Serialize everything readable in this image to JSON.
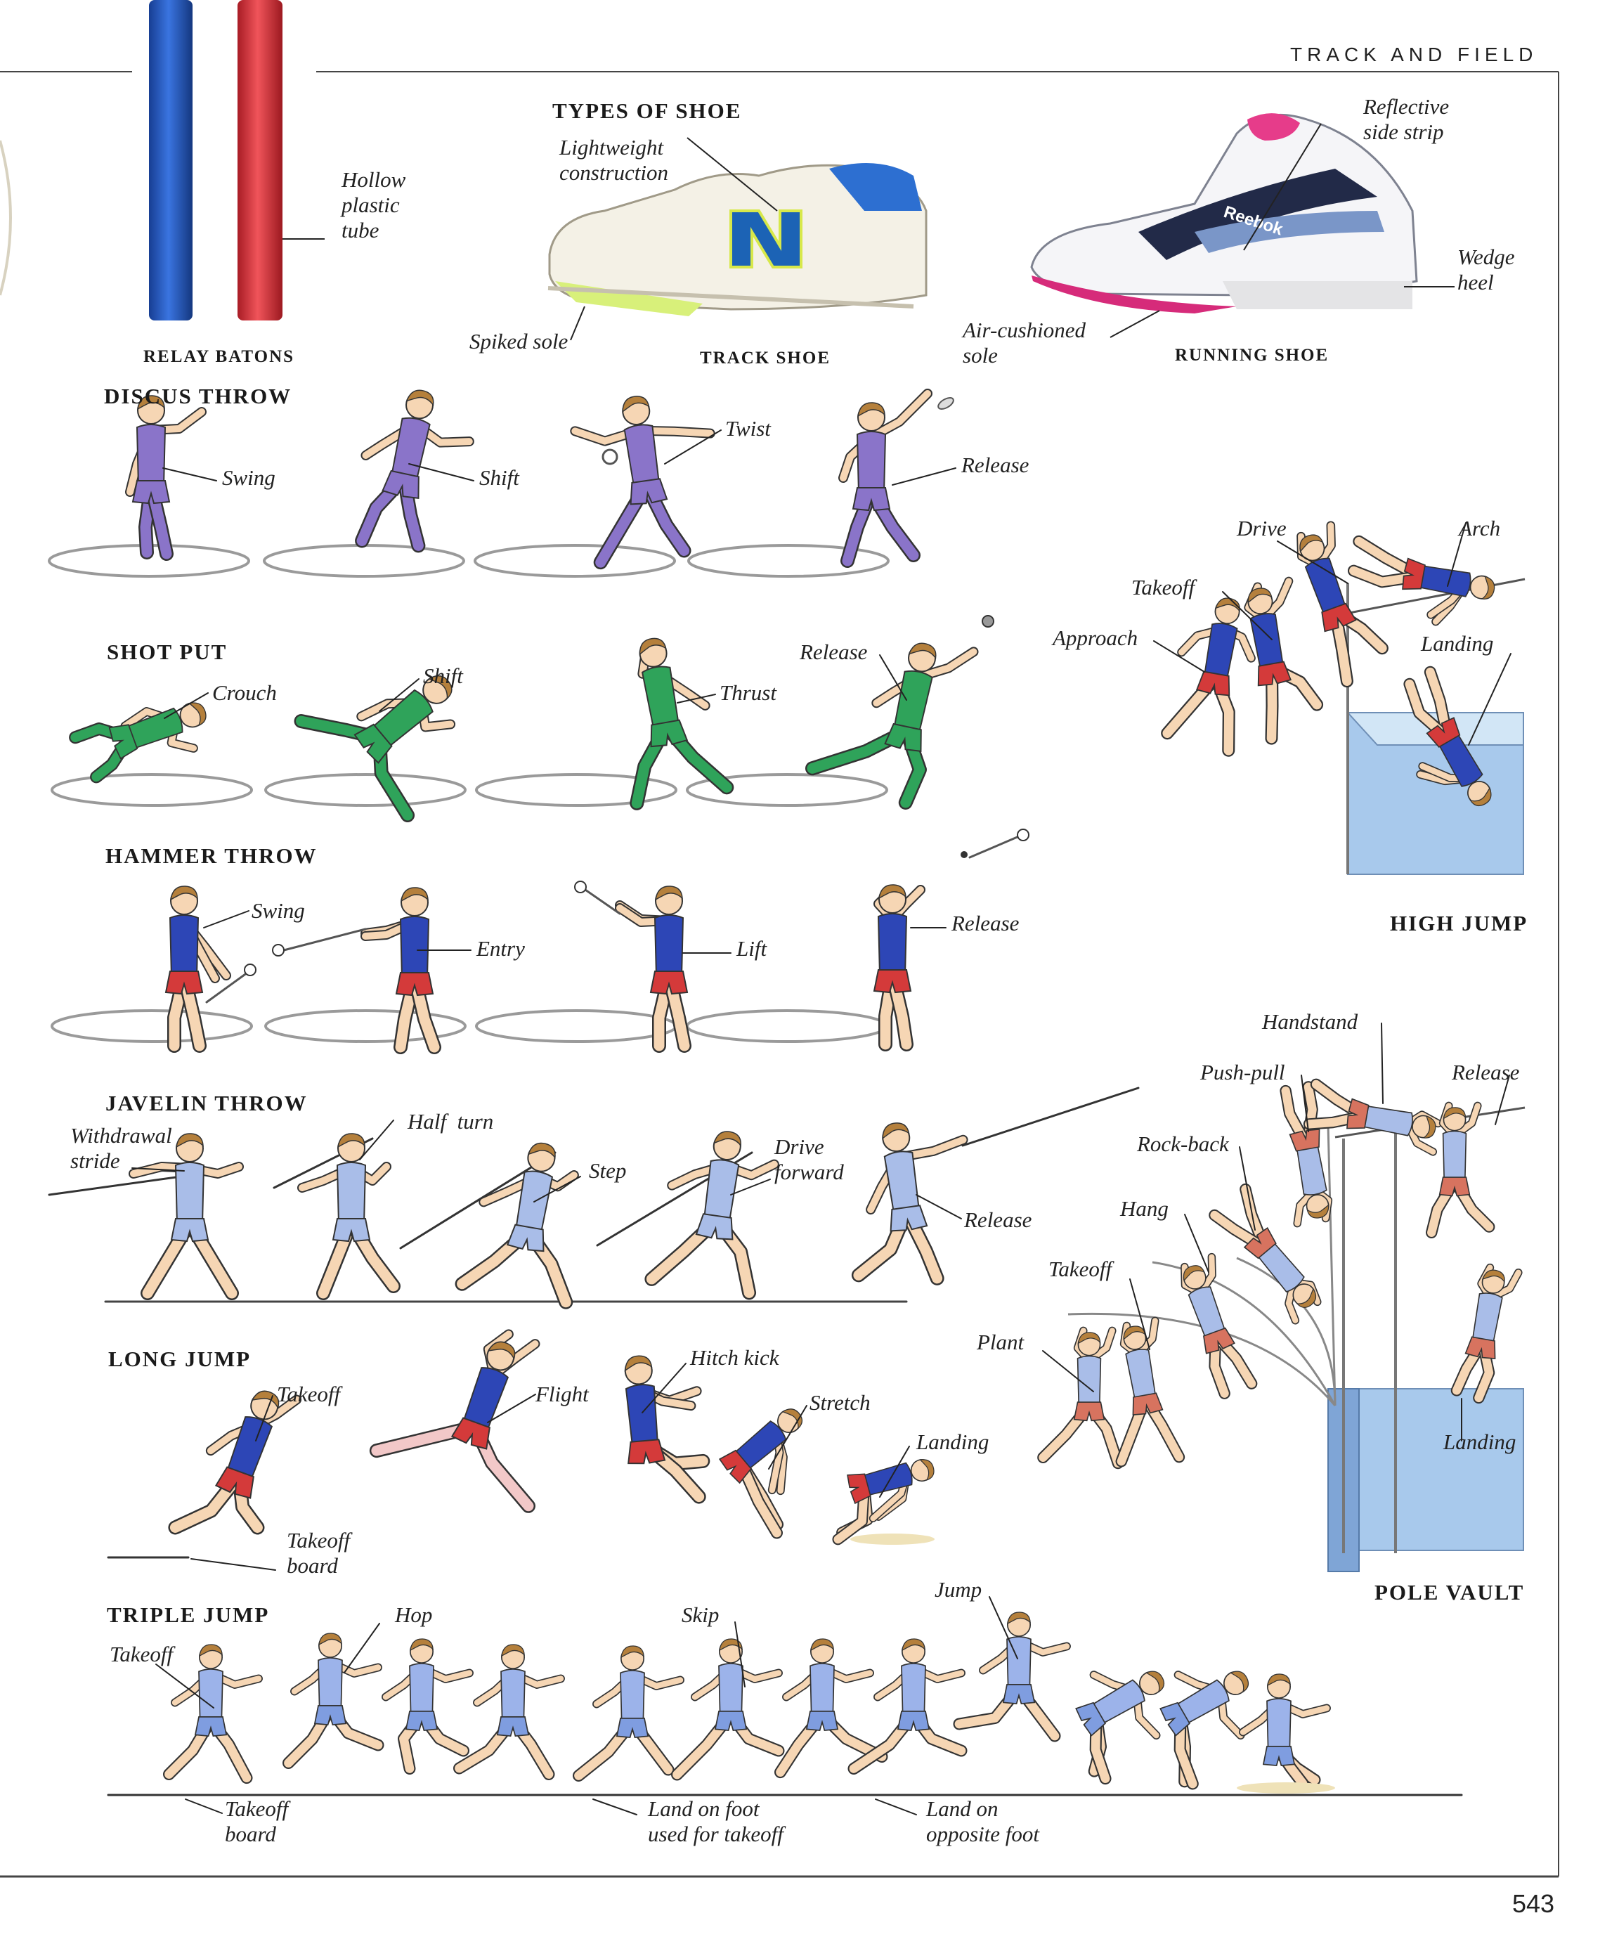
{
  "page": {
    "running_head": "TRACK AND FIELD",
    "page_number": "543"
  },
  "relay": {
    "caption": "RELAY BATONS",
    "label_tube": "Hollow\nplastic\ntube",
    "colors": {
      "blue": "#1f4fb3",
      "red": "#d22a33"
    }
  },
  "shoes": {
    "heading": "TYPES OF SHOE",
    "track_caption": "TRACK SHOE",
    "running_caption": "RUNNING SHOE",
    "labels": {
      "lightweight": "Lightweight\nconstruction",
      "spiked_sole": "Spiked sole",
      "reflective": "Reflective\nside strip",
      "wedge_heel": "Wedge\nheel",
      "air_sole": "Air-cushioned\nsole"
    }
  },
  "discus": {
    "heading": "DISCUS THROW",
    "steps": [
      "Swing",
      "Shift",
      "Twist",
      "Release"
    ],
    "color": "#8a74c9"
  },
  "shot_put": {
    "heading": "SHOT PUT",
    "steps": [
      "Crouch",
      "Shift",
      "Thrust",
      "Release"
    ],
    "color": "#2fa35a"
  },
  "hammer": {
    "heading": "HAMMER THROW",
    "steps": [
      "Swing",
      "Entry",
      "Lift",
      "Release"
    ],
    "color": "#2d46b6"
  },
  "javelin": {
    "heading": "JAVELIN THROW",
    "steps": [
      "Withdrawal\nstride",
      "Half  turn",
      "Step",
      "Drive\nforward",
      "Release"
    ],
    "color": "#a9bde8"
  },
  "long_jump": {
    "heading": "LONG JUMP",
    "steps": [
      "Takeoff",
      "Flight",
      "Hitch kick",
      "Stretch",
      "Landing",
      "Takeoff\nboard"
    ],
    "color": "#2d46b6"
  },
  "triple_jump": {
    "heading": "TRIPLE JUMP",
    "steps": [
      "Takeoff",
      "Hop",
      "Skip",
      "Jump",
      "Takeoff\nboard",
      "Land on foot\nused for takeoff",
      "Land on\nopposite foot"
    ],
    "color": "#9cb3ea"
  },
  "high_jump": {
    "heading": "HIGH JUMP",
    "steps": [
      "Drive",
      "Arch",
      "Takeoff",
      "Approach",
      "Landing"
    ],
    "color": "#2d46b6",
    "mat_color": "#a8c9ec"
  },
  "pole_vault": {
    "heading": "POLE VAULT",
    "steps": [
      "Handstand",
      "Push-pull",
      "Release",
      "Rock-back",
      "Hang",
      "Takeoff",
      "Plant",
      "Landing"
    ],
    "color": "#a9bde8",
    "mat_color": "#a8c9ec"
  }
}
